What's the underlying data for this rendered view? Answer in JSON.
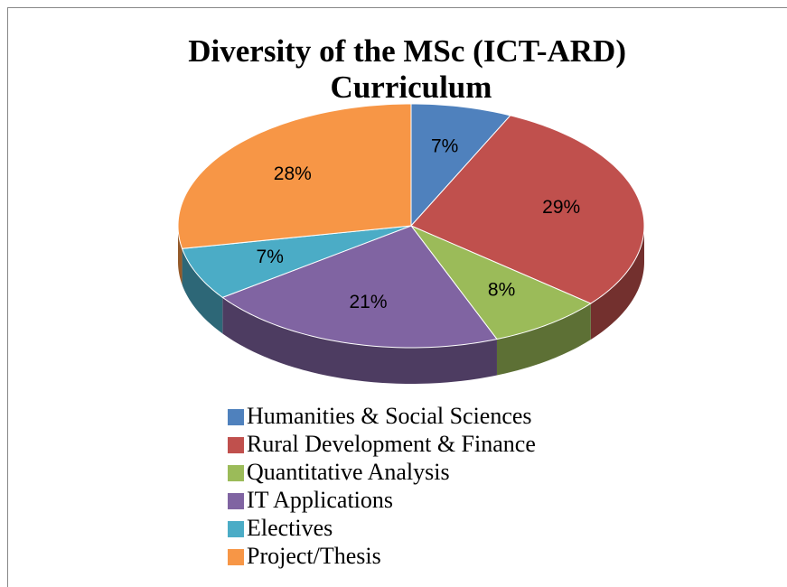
{
  "chart_data": {
    "type": "pie",
    "title": "Diversity of the MSc (ICT-ARD) Curriculum",
    "categories": [
      "Humanities & Social Sciences",
      "Rural Development & Finance",
      "Quantitative Analysis",
      "IT Applications",
      "Electives",
      "Project/Thesis"
    ],
    "values": [
      7,
      29,
      8,
      21,
      7,
      28
    ],
    "value_labels": [
      "7%",
      "29%",
      "8%",
      "21%",
      "7%",
      "28%"
    ],
    "colors": [
      "#4f81bd",
      "#c0504d",
      "#9bbb59",
      "#8064a2",
      "#4bacc6",
      "#f79646"
    ],
    "legend": "bottom"
  }
}
